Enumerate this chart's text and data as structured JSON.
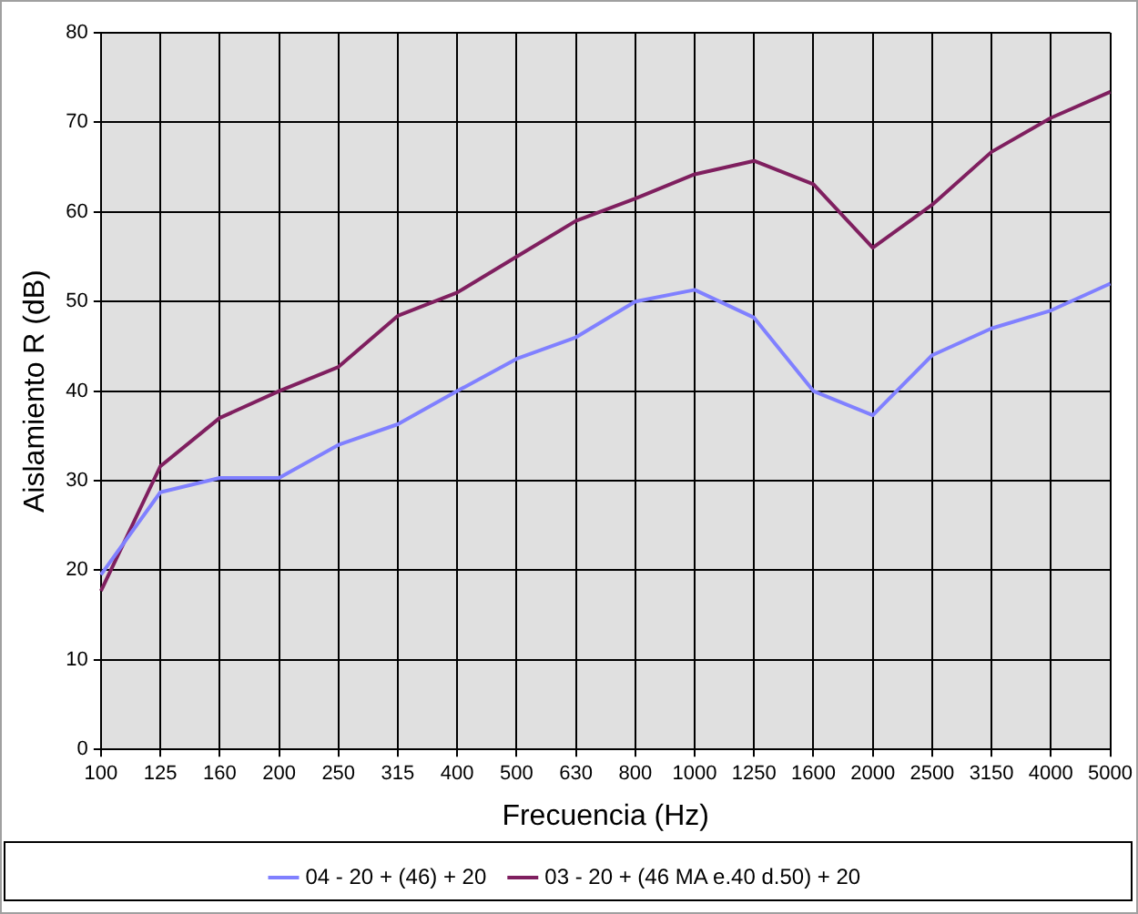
{
  "chart_data": {
    "type": "line",
    "xlabel": "Frecuencia (Hz)",
    "ylabel": "Aislamiento R (dB)",
    "categories": [
      "100",
      "125",
      "160",
      "200",
      "250",
      "315",
      "400",
      "500",
      "630",
      "800",
      "1000",
      "1250",
      "1600",
      "2000",
      "2500",
      "3150",
      "4000",
      "5000"
    ],
    "series": [
      {
        "name": "04 - 20 + (46) + 20",
        "color": "#8080ff",
        "values": [
          19.5,
          28.7,
          30.3,
          30.3,
          34,
          36.3,
          40,
          43.6,
          46,
          50,
          51.3,
          48.2,
          40,
          37.3,
          44,
          47,
          49,
          52
        ]
      },
      {
        "name": "03 - 20 + (46 MA e.40 d.50) + 20",
        "color": "#7f1f5f",
        "values": [
          17.7,
          31.6,
          37,
          40,
          42.7,
          48.4,
          51,
          55,
          59,
          61.5,
          64.2,
          65.7,
          63.1,
          56,
          60.8,
          66.7,
          70.5,
          73.4
        ]
      }
    ],
    "ylim": [
      0,
      80
    ],
    "yticks": [
      0,
      10,
      20,
      30,
      40,
      50,
      60,
      70,
      80
    ],
    "grid": true,
    "legend": "bottom",
    "marker": "none",
    "line_style": "solid"
  }
}
